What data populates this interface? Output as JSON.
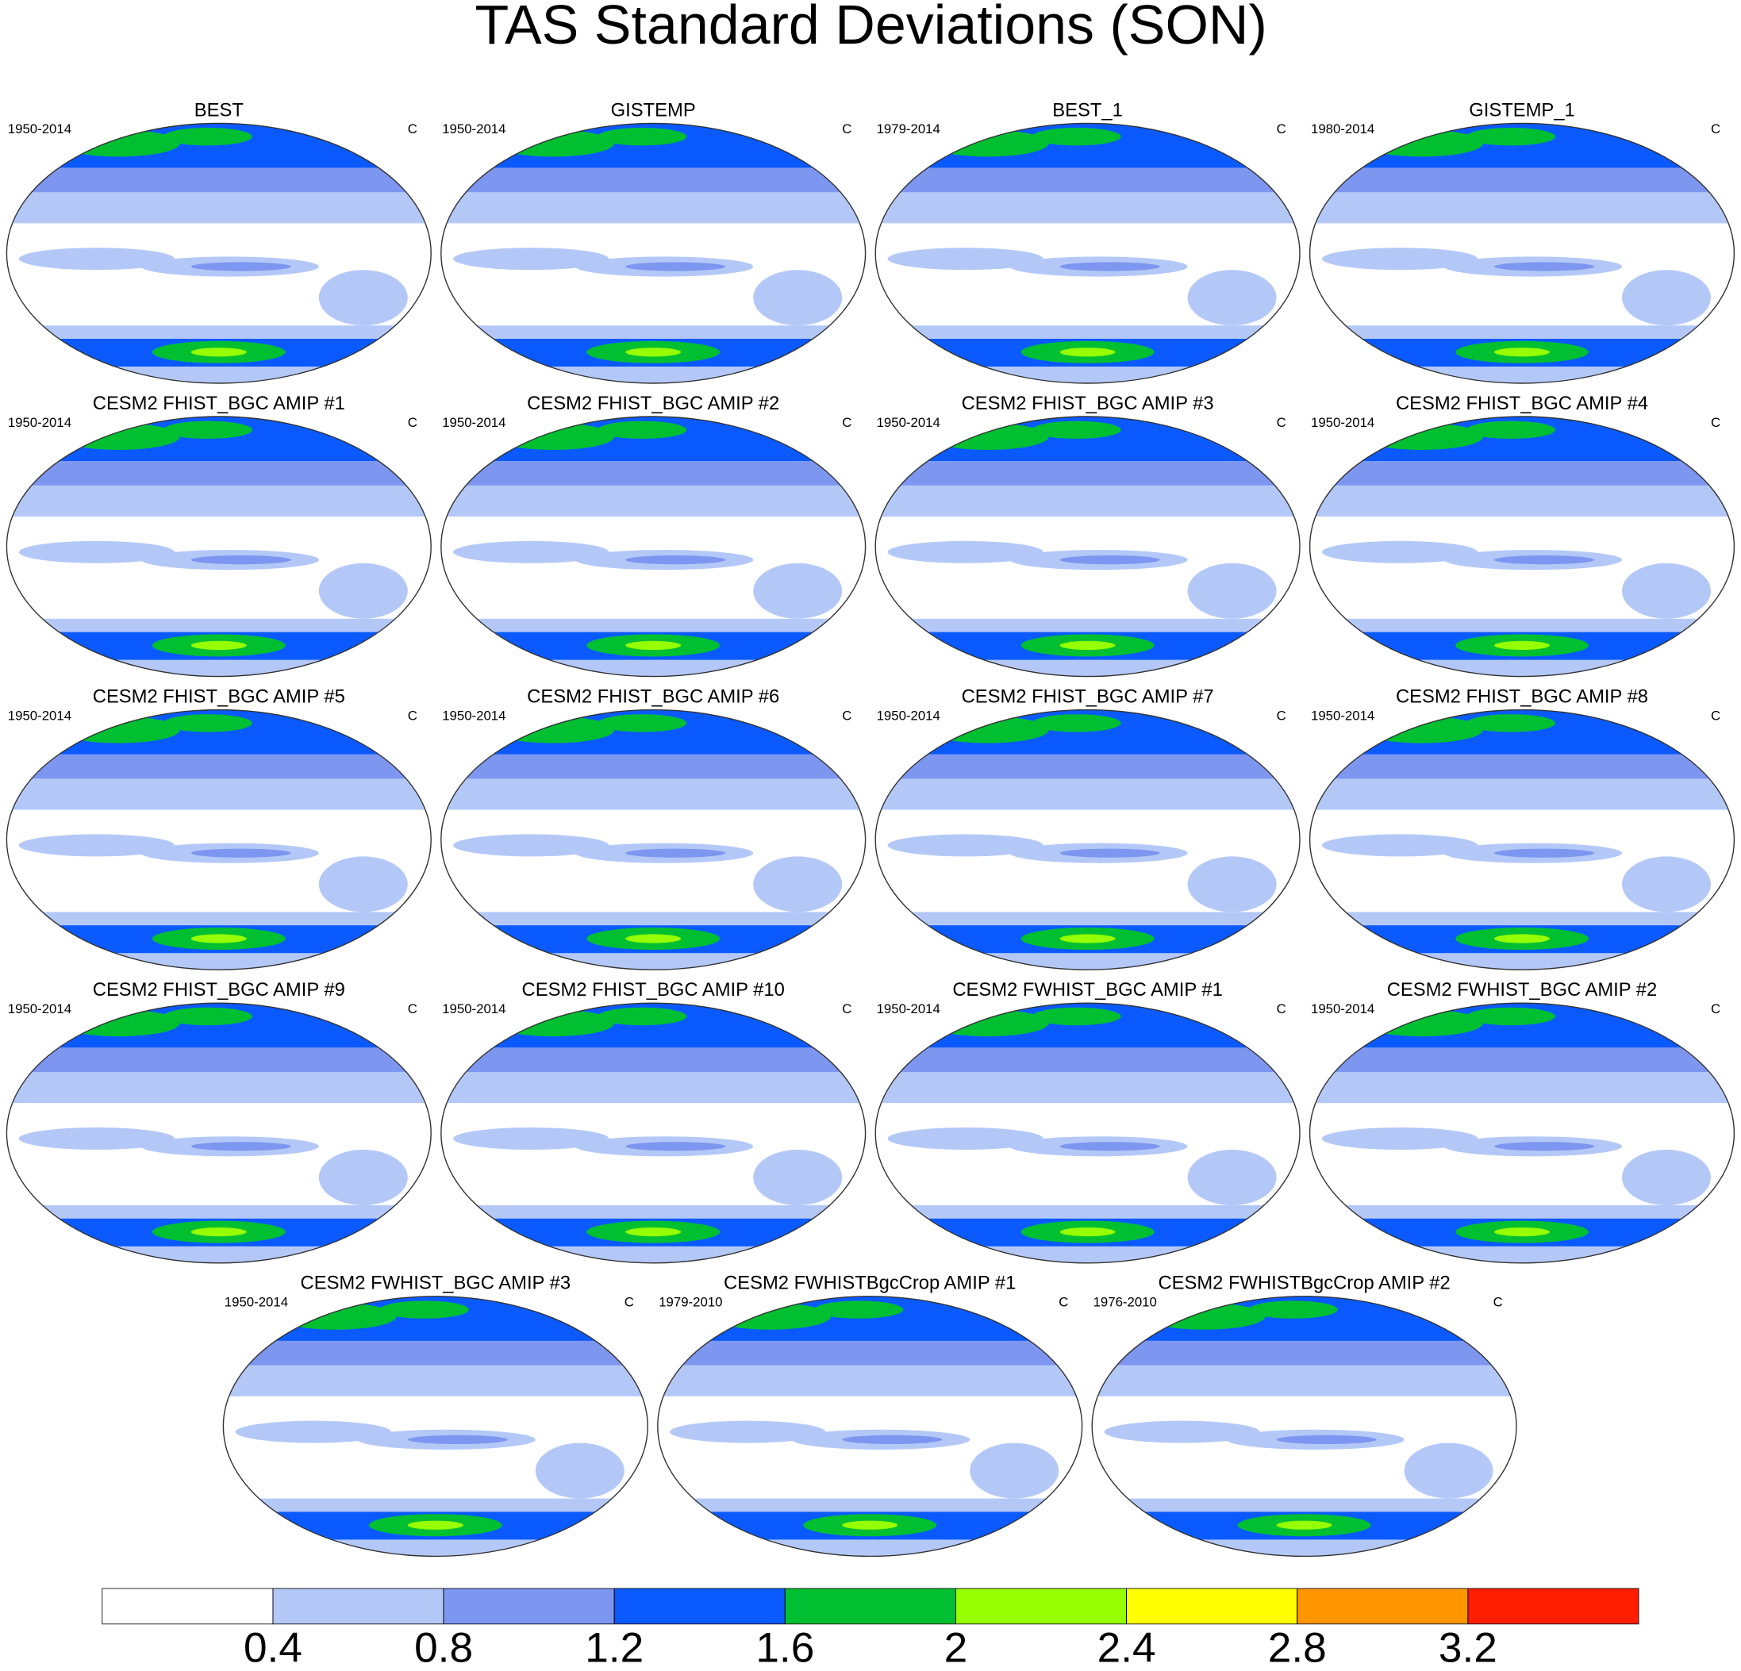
{
  "title": "TAS Standard Deviations (SON)",
  "panels": [
    {
      "title": "BEST",
      "period": "1950-2014",
      "units": "C"
    },
    {
      "title": "GISTEMP",
      "period": "1950-2014",
      "units": "C"
    },
    {
      "title": "BEST_1",
      "period": "1979-2014",
      "units": "C"
    },
    {
      "title": "GISTEMP_1",
      "period": "1980-2014",
      "units": "C"
    },
    {
      "title": "CESM2 FHIST_BGC AMIP #1",
      "period": "1950-2014",
      "units": "C"
    },
    {
      "title": "CESM2 FHIST_BGC AMIP #2",
      "period": "1950-2014",
      "units": "C"
    },
    {
      "title": "CESM2 FHIST_BGC AMIP #3",
      "period": "1950-2014",
      "units": "C"
    },
    {
      "title": "CESM2 FHIST_BGC AMIP #4",
      "period": "1950-2014",
      "units": "C"
    },
    {
      "title": "CESM2 FHIST_BGC AMIP #5",
      "period": "1950-2014",
      "units": "C"
    },
    {
      "title": "CESM2 FHIST_BGC AMIP #6",
      "period": "1950-2014",
      "units": "C"
    },
    {
      "title": "CESM2 FHIST_BGC AMIP #7",
      "period": "1950-2014",
      "units": "C"
    },
    {
      "title": "CESM2 FHIST_BGC AMIP #8",
      "period": "1950-2014",
      "units": "C"
    },
    {
      "title": "CESM2 FHIST_BGC AMIP #9",
      "period": "1950-2014",
      "units": "C"
    },
    {
      "title": "CESM2 FHIST_BGC AMIP #10",
      "period": "1950-2014",
      "units": "C"
    },
    {
      "title": "CESM2 FWHIST_BGC AMIP #1",
      "period": "1950-2014",
      "units": "C"
    },
    {
      "title": "CESM2 FWHIST_BGC AMIP #2",
      "period": "1950-2014",
      "units": "C"
    },
    {
      "title": "CESM2 FWHIST_BGC AMIP #3",
      "period": "1950-2014",
      "units": "C"
    },
    {
      "title": "CESM2 FWHISTBgcCrop AMIP #1",
      "period": "1979-2010",
      "units": "C"
    },
    {
      "title": "CESM2 FWHISTBgcCrop AMIP #2",
      "period": "1976-2010",
      "units": "C"
    }
  ],
  "colorbar": {
    "lim": [
      0,
      3.6
    ],
    "ticks": [
      0.4,
      0.8,
      1.2,
      1.6,
      2,
      2.4,
      2.8,
      3.2
    ],
    "colors": [
      "#ffffff",
      "#b4c8f8",
      "#7d96f0",
      "#0a5aff",
      "#00c032",
      "#96ff00",
      "#ffff00",
      "#ff9600",
      "#ff1e00"
    ]
  }
}
